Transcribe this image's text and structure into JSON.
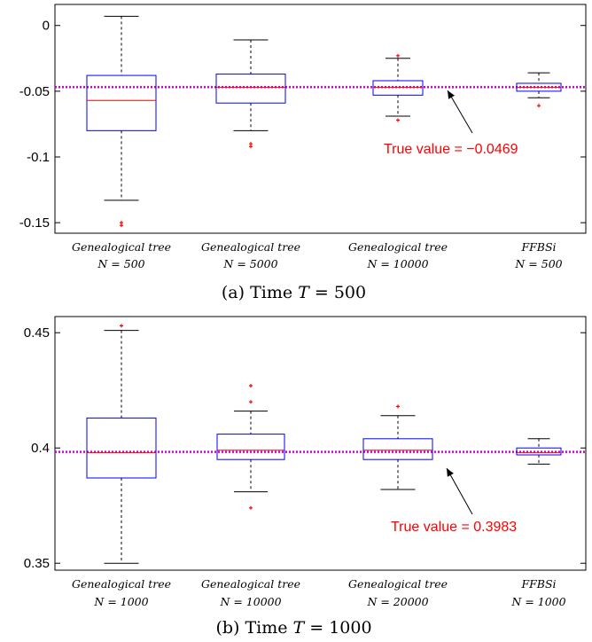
{
  "chart_data": [
    {
      "type": "box",
      "caption_prefix": "(a) Time ",
      "caption_T": "T",
      "caption_eq": " = 500",
      "ylim": [
        -0.158,
        0.016
      ],
      "yticks": [
        0,
        -0.05,
        -0.1,
        -0.15
      ],
      "ytick_labels": [
        "0",
        "-0.05",
        "-0.1",
        "-0.15"
      ],
      "true_value": -0.0469,
      "annotation": "True value = −0.0469",
      "categories": [
        {
          "line1": "Genealogical tree",
          "line2": "N = 500"
        },
        {
          "line1": "Genealogical tree",
          "line2": "N = 5000"
        },
        {
          "line1": "Genealogical tree",
          "line2": "N = 10000"
        },
        {
          "line1": "FFBSi",
          "line2": "N = 500"
        }
      ],
      "boxes": [
        {
          "whisker_low": -0.133,
          "q1": -0.08,
          "median": -0.057,
          "q3": -0.038,
          "whisker_high": 0.007,
          "outliers": [
            -0.15,
            -0.152
          ]
        },
        {
          "whisker_low": -0.08,
          "q1": -0.059,
          "median": -0.047,
          "q3": -0.037,
          "whisker_high": -0.011,
          "outliers": [
            -0.09,
            -0.092
          ]
        },
        {
          "whisker_low": -0.069,
          "q1": -0.053,
          "median": -0.047,
          "q3": -0.042,
          "whisker_high": -0.025,
          "outliers": [
            -0.023,
            -0.072
          ]
        },
        {
          "whisker_low": -0.055,
          "q1": -0.05,
          "median": -0.047,
          "q3": -0.044,
          "whisker_high": -0.036,
          "outliers": [
            -0.061
          ]
        }
      ],
      "colors": {
        "box": "#0000ff",
        "median": "#ff0000",
        "whisker": "#000000",
        "outlier": "#ff0000",
        "true_line": "#cc00cc"
      }
    },
    {
      "type": "box",
      "caption_prefix": "(b) Time ",
      "caption_T": "T",
      "caption_eq": " = 1000",
      "ylim": [
        0.347,
        0.457
      ],
      "yticks": [
        0.45,
        0.4,
        0.35
      ],
      "ytick_labels": [
        "0.45",
        "0.4",
        "0.35"
      ],
      "true_value": 0.3983,
      "annotation": "True value = 0.3983",
      "categories": [
        {
          "line1": "Genealogical tree",
          "line2": "N = 1000"
        },
        {
          "line1": "Genealogical tree",
          "line2": "N = 10000"
        },
        {
          "line1": "Genealogical tree",
          "line2": "N = 20000"
        },
        {
          "line1": "FFBSi",
          "line2": "N = 1000"
        }
      ],
      "boxes": [
        {
          "whisker_low": 0.35,
          "q1": 0.387,
          "median": 0.398,
          "q3": 0.413,
          "whisker_high": 0.451,
          "outliers": [
            0.453
          ]
        },
        {
          "whisker_low": 0.381,
          "q1": 0.395,
          "median": 0.399,
          "q3": 0.406,
          "whisker_high": 0.416,
          "outliers": [
            0.427,
            0.42,
            0.374
          ]
        },
        {
          "whisker_low": 0.382,
          "q1": 0.395,
          "median": 0.399,
          "q3": 0.404,
          "whisker_high": 0.414,
          "outliers": [
            0.418
          ]
        },
        {
          "whisker_low": 0.393,
          "q1": 0.397,
          "median": 0.398,
          "q3": 0.4,
          "whisker_high": 0.404,
          "outliers": []
        }
      ],
      "colors": {
        "box": "#0000ff",
        "median": "#ff0000",
        "whisker": "#000000",
        "outlier": "#ff0000",
        "true_line": "#cc00cc"
      }
    }
  ]
}
